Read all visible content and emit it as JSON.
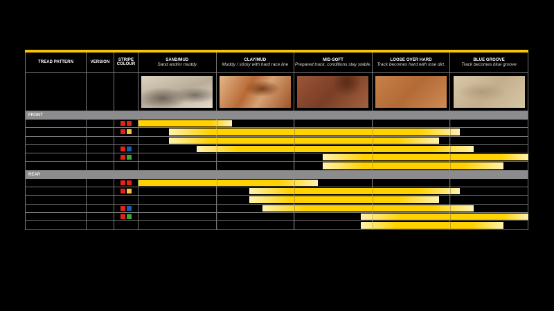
{
  "headers": {
    "tread_pattern": "TREAD PATTERN",
    "version": "VERSION",
    "stripe_colour": "STRIPE COLOUR"
  },
  "conditions": [
    {
      "title": "SAND/MUD",
      "subtitle": "Sand and/or muddy",
      "image": "sand-dunes"
    },
    {
      "title": "CLAY/MUD",
      "subtitle": "Muddy / sticky with hard race line",
      "image": "clay-mud"
    },
    {
      "title": "MID-SOFT",
      "subtitle": "Prepared track, conditions stay stable.",
      "image": "mid-soft-dirt"
    },
    {
      "title": "LOOSE OVER HARD",
      "subtitle": "Track becomes hard with lose dirt.",
      "image": "loose-over-hard-dirt"
    },
    {
      "title": "BLUE GROOVE",
      "subtitle": "Track becomes blue groove",
      "image": "blue-groove-dirt"
    }
  ],
  "colors": {
    "accent": "#f7c600",
    "red": "#e2231a",
    "yellow": "#f5c242",
    "blue": "#1560b0",
    "green": "#3aaa35",
    "band": "#8c8c8e"
  },
  "sections": [
    {
      "label": "FRONT",
      "rows": [
        {
          "stripes": [
            "red",
            "red"
          ],
          "range": [
            0,
            1.2
          ]
        },
        {
          "stripes": [
            "red",
            "yellow"
          ],
          "range": [
            0.39,
            4.12
          ]
        },
        {
          "stripes": [],
          "range": [
            0.39,
            3.85
          ]
        },
        {
          "stripes": [
            "red",
            "blue"
          ],
          "range": [
            0.75,
            4.3
          ]
        },
        {
          "stripes": [
            "red",
            "green"
          ],
          "range": [
            2.36,
            5
          ]
        },
        {
          "stripes": [],
          "range": [
            2.36,
            4.68
          ]
        }
      ]
    },
    {
      "label": "REAR",
      "rows": [
        {
          "stripes": [
            "red",
            "red"
          ],
          "range": [
            0,
            2.3
          ]
        },
        {
          "stripes": [
            "red",
            "yellow"
          ],
          "range": [
            1.42,
            4.12
          ]
        },
        {
          "stripes": [],
          "range": [
            1.42,
            3.85
          ]
        },
        {
          "stripes": [
            "red",
            "blue"
          ],
          "range": [
            1.59,
            4.3
          ]
        },
        {
          "stripes": [
            "red",
            "green"
          ],
          "range": [
            2.85,
            5
          ]
        },
        {
          "stripes": [],
          "range": [
            2.85,
            4.68
          ]
        }
      ]
    }
  ]
}
